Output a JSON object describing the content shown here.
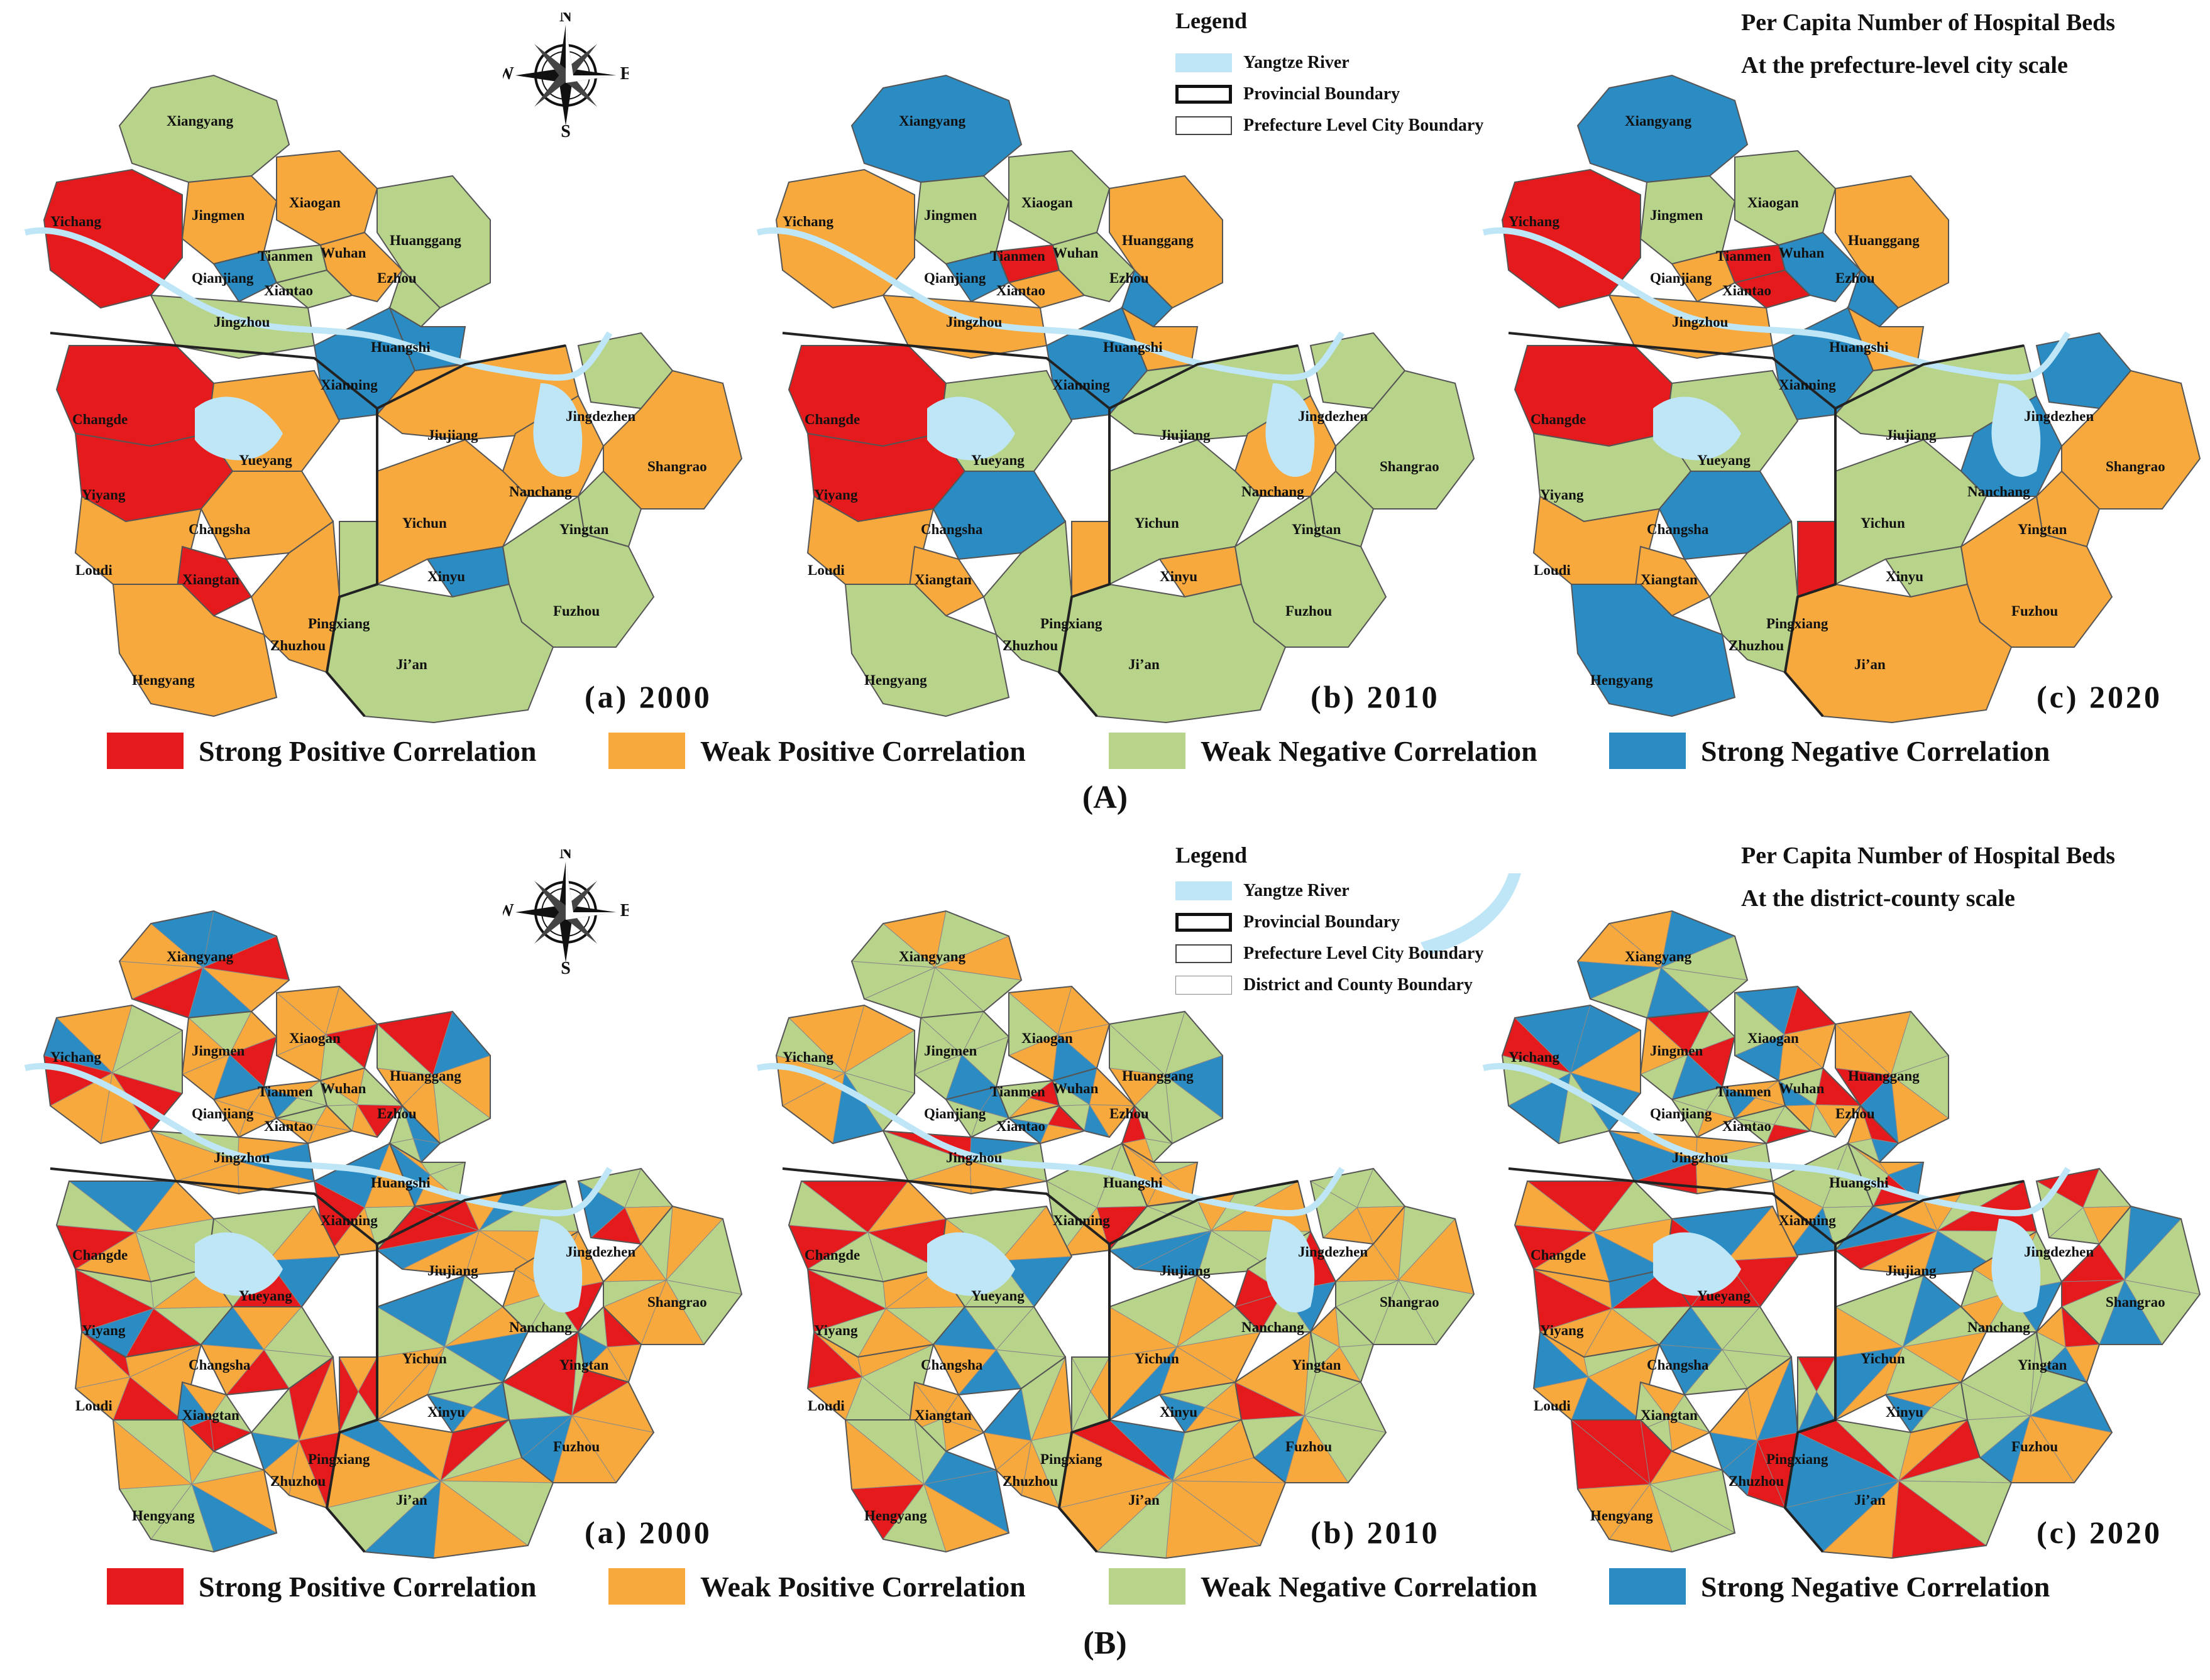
{
  "colors": {
    "strong_positive": "#e41a1c",
    "weak_positive": "#f7a93d",
    "weak_negative": "#b8d38a",
    "strong_negative": "#2b8cc4",
    "river": "#bfe6f7"
  },
  "compass": {
    "n": "N",
    "s": "S",
    "e": "E",
    "w": "W",
    "icon": "compass-rose-icon"
  },
  "legend": [
    {
      "label": "Strong Positive Correlation",
      "color": "#e41a1c"
    },
    {
      "label": "Weak Positive Correlation",
      "color": "#f7a93d"
    },
    {
      "label": "Weak Negative Correlation",
      "color": "#b8d38a"
    },
    {
      "label": "Strong Negative Correlation",
      "color": "#2b8cc4"
    }
  ],
  "panels": [
    "(a) 2000",
    "(b) 2010",
    "(c) 2020"
  ],
  "cities": [
    "Xiangyang",
    "Jingmen",
    "Xiaogan",
    "Yichang",
    "Tianmen",
    "Wuhan",
    "Huanggang",
    "Qianjiang",
    "Xiantao",
    "Ezhou",
    "Jingzhou",
    "Huangshi",
    "Xianning",
    "Changde",
    "Jiujiang",
    "Jingdezhen",
    "Yueyang",
    "Shangrao",
    "Nanchang",
    "Yiyang",
    "Yichun",
    "Changsha",
    "Yingtan",
    "Loudi",
    "Xiantan",
    "Xinyu",
    "Pingxiang",
    "Fuzhou",
    "Zhuzhou",
    "Ji’an",
    "Hengyang",
    "Xiangtan"
  ],
  "setA": {
    "caption": "(A)",
    "title_line1": "Per Capita Number of Hospital Beds",
    "title_line2": "At the prefecture-level city scale",
    "key_title": "Legend",
    "key_items": [
      "Yangtze River",
      "Provincial Boundary",
      "Prefecture Level City Boundary"
    ],
    "assignments": {
      "2000": {
        "Xiangyang": "weak_negative",
        "Jingmen": "weak_positive",
        "Xiaogan": "weak_positive",
        "Yichang": "strong_positive",
        "Tianmen": "weak_negative",
        "Wuhan": "weak_positive",
        "Huanggang": "weak_negative",
        "Qianjiang": "strong_negative",
        "Xiantao": "weak_negative",
        "Ezhou": "weak_negative",
        "Jingzhou": "weak_negative",
        "Huangshi": "strong_negative",
        "Xianning": "strong_negative",
        "Changde": "strong_positive",
        "Jiujiang": "weak_positive",
        "Jingdezhen": "weak_negative",
        "Yueyang": "weak_positive",
        "Shangrao": "weak_positive",
        "Nanchang": "weak_positive",
        "Yiyang": "strong_positive",
        "Yichun": "weak_positive",
        "Changsha": "weak_positive",
        "Yingtan": "weak_negative",
        "Loudi": "weak_positive",
        "Xiangtan": "strong_positive",
        "Xinyu": "strong_negative",
        "Pingxiang": "weak_negative",
        "Fuzhou": "weak_negative",
        "Zhuzhou": "weak_positive",
        "Ji’an": "weak_negative",
        "Hengyang": "weak_positive"
      },
      "2010": {
        "Xiangyang": "strong_negative",
        "Jingmen": "weak_negative",
        "Xiaogan": "weak_negative",
        "Yichang": "weak_positive",
        "Tianmen": "strong_positive",
        "Wuhan": "weak_negative",
        "Huanggang": "weak_positive",
        "Qianjiang": "strong_negative",
        "Xiantao": "weak_positive",
        "Ezhou": "strong_negative",
        "Jingzhou": "weak_positive",
        "Huangshi": "weak_positive",
        "Xianning": "strong_negative",
        "Changde": "strong_positive",
        "Jiujiang": "weak_negative",
        "Jingdezhen": "weak_negative",
        "Yueyang": "weak_negative",
        "Shangrao": "weak_negative",
        "Nanchang": "weak_positive",
        "Yiyang": "strong_positive",
        "Yichun": "weak_negative",
        "Changsha": "strong_negative",
        "Yingtan": "weak_negative",
        "Loudi": "weak_positive",
        "Xiangtan": "weak_positive",
        "Xinyu": "weak_positive",
        "Pingxiang": "weak_positive",
        "Fuzhou": "weak_negative",
        "Zhuzhou": "weak_negative",
        "Ji’an": "weak_negative",
        "Hengyang": "weak_negative"
      },
      "2020": {
        "Xiangyang": "strong_negative",
        "Jingmen": "weak_negative",
        "Xiaogan": "weak_negative",
        "Yichang": "strong_positive",
        "Tianmen": "strong_positive",
        "Wuhan": "strong_negative",
        "Huanggang": "weak_positive",
        "Qianjiang": "weak_positive",
        "Xiantao": "strong_positive",
        "Ezhou": "strong_negative",
        "Jingzhou": "weak_positive",
        "Huangshi": "weak_positive",
        "Xianning": "strong_negative",
        "Changde": "strong_positive",
        "Jiujiang": "weak_negative",
        "Jingdezhen": "strong_negative",
        "Yueyang": "weak_negative",
        "Shangrao": "weak_positive",
        "Nanchang": "strong_negative",
        "Yiyang": "weak_negative",
        "Yichun": "weak_negative",
        "Changsha": "strong_negative",
        "Yingtan": "weak_positive",
        "Loudi": "weak_positive",
        "Xiangtan": "weak_positive",
        "Xinyu": "weak_negative",
        "Pingxiang": "strong_positive",
        "Fuzhou": "weak_positive",
        "Zhuzhou": "weak_negative",
        "Ji’an": "weak_positive",
        "Hengyang": "strong_negative"
      }
    }
  },
  "setB": {
    "caption": "(B)",
    "title_line1": "Per Capita Number of Hospital Beds",
    "title_line2": "At the district-county scale",
    "key_title": "Legend",
    "key_items": [
      "Yangtze River",
      "Provincial Boundary",
      "Prefecture Level City Boundary",
      "District and County Boundary"
    ]
  }
}
